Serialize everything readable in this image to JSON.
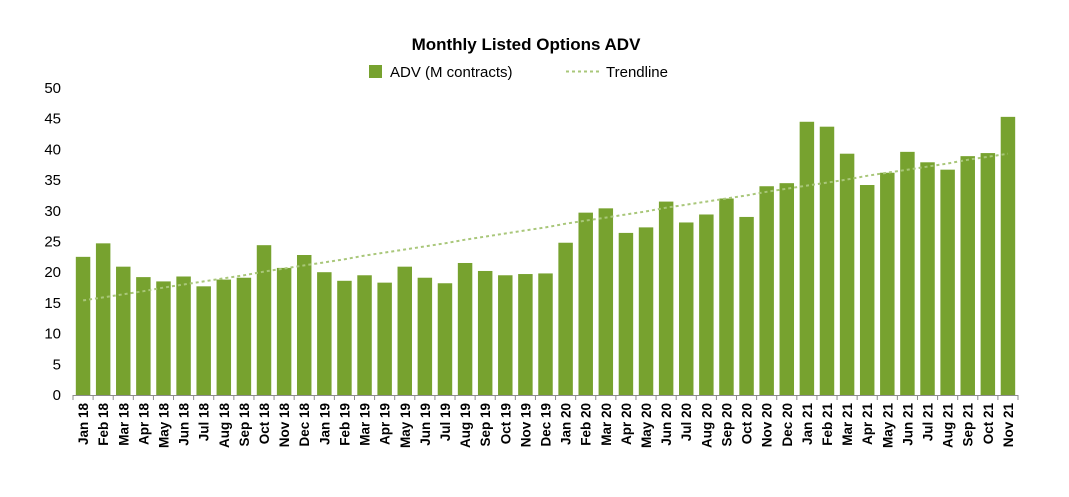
{
  "chart_data": {
    "type": "bar",
    "title": "Monthly Listed Options ADV",
    "xlabel": "",
    "ylabel": "",
    "ylim": [
      0,
      50
    ],
    "yticks": [
      0,
      5,
      10,
      15,
      20,
      25,
      30,
      35,
      40,
      45,
      50
    ],
    "grid": false,
    "legend_position": "top-center",
    "categories": [
      "Jan 18",
      "Feb 18",
      "Mar 18",
      "Apr 18",
      "May 18",
      "Jun 18",
      "Jul 18",
      "Aug 18",
      "Sep 18",
      "Oct 18",
      "Nov 18",
      "Dec 18",
      "Jan 19",
      "Feb 19",
      "Mar 19",
      "Apr 19",
      "May 19",
      "Jun 19",
      "Jul 19",
      "Aug 19",
      "Sep 19",
      "Oct 19",
      "Nov 19",
      "Dec 19",
      "Jan 20",
      "Feb 20",
      "Mar 20",
      "Apr 20",
      "May 20",
      "Jun 20",
      "Jul 20",
      "Aug 20",
      "Sep 20",
      "Oct 20",
      "Nov 20",
      "Dec 20",
      "Jan 21",
      "Feb 21",
      "Mar 21",
      "Apr 21",
      "May 21",
      "Jun 21",
      "Jul 21",
      "Aug 21",
      "Sep 21",
      "Oct 21",
      "Nov 21"
    ],
    "series": [
      {
        "name": "ADV (M contracts)",
        "kind": "bar",
        "color": "#77a22f",
        "values": [
          22.5,
          24.7,
          20.9,
          19.2,
          18.5,
          19.3,
          17.7,
          18.8,
          19.1,
          24.4,
          20.7,
          22.8,
          20.0,
          18.6,
          19.5,
          18.3,
          20.9,
          19.1,
          18.2,
          21.5,
          20.2,
          19.5,
          19.7,
          19.8,
          24.8,
          29.7,
          30.4,
          26.4,
          27.3,
          31.5,
          28.1,
          29.4,
          32.0,
          29.0,
          34.0,
          34.5,
          44.5,
          43.7,
          39.3,
          34.2,
          36.2,
          39.6,
          37.9,
          36.7,
          38.9,
          39.4,
          45.3
        ]
      },
      {
        "name": "Trendline",
        "kind": "line",
        "style": "dashed",
        "color": "#a9c77a",
        "values": [
          15.4,
          15.9,
          16.4,
          16.9,
          17.5,
          18.0,
          18.5,
          19.0,
          19.5,
          20.1,
          20.6,
          21.1,
          21.6,
          22.1,
          22.7,
          23.2,
          23.7,
          24.2,
          24.7,
          25.3,
          25.8,
          26.3,
          26.8,
          27.3,
          27.9,
          28.4,
          28.9,
          29.4,
          29.9,
          30.5,
          31.0,
          31.5,
          32.0,
          32.5,
          33.1,
          33.6,
          34.1,
          34.6,
          35.1,
          35.7,
          36.2,
          36.7,
          37.2,
          37.7,
          38.3,
          38.8,
          39.3
        ]
      }
    ]
  }
}
